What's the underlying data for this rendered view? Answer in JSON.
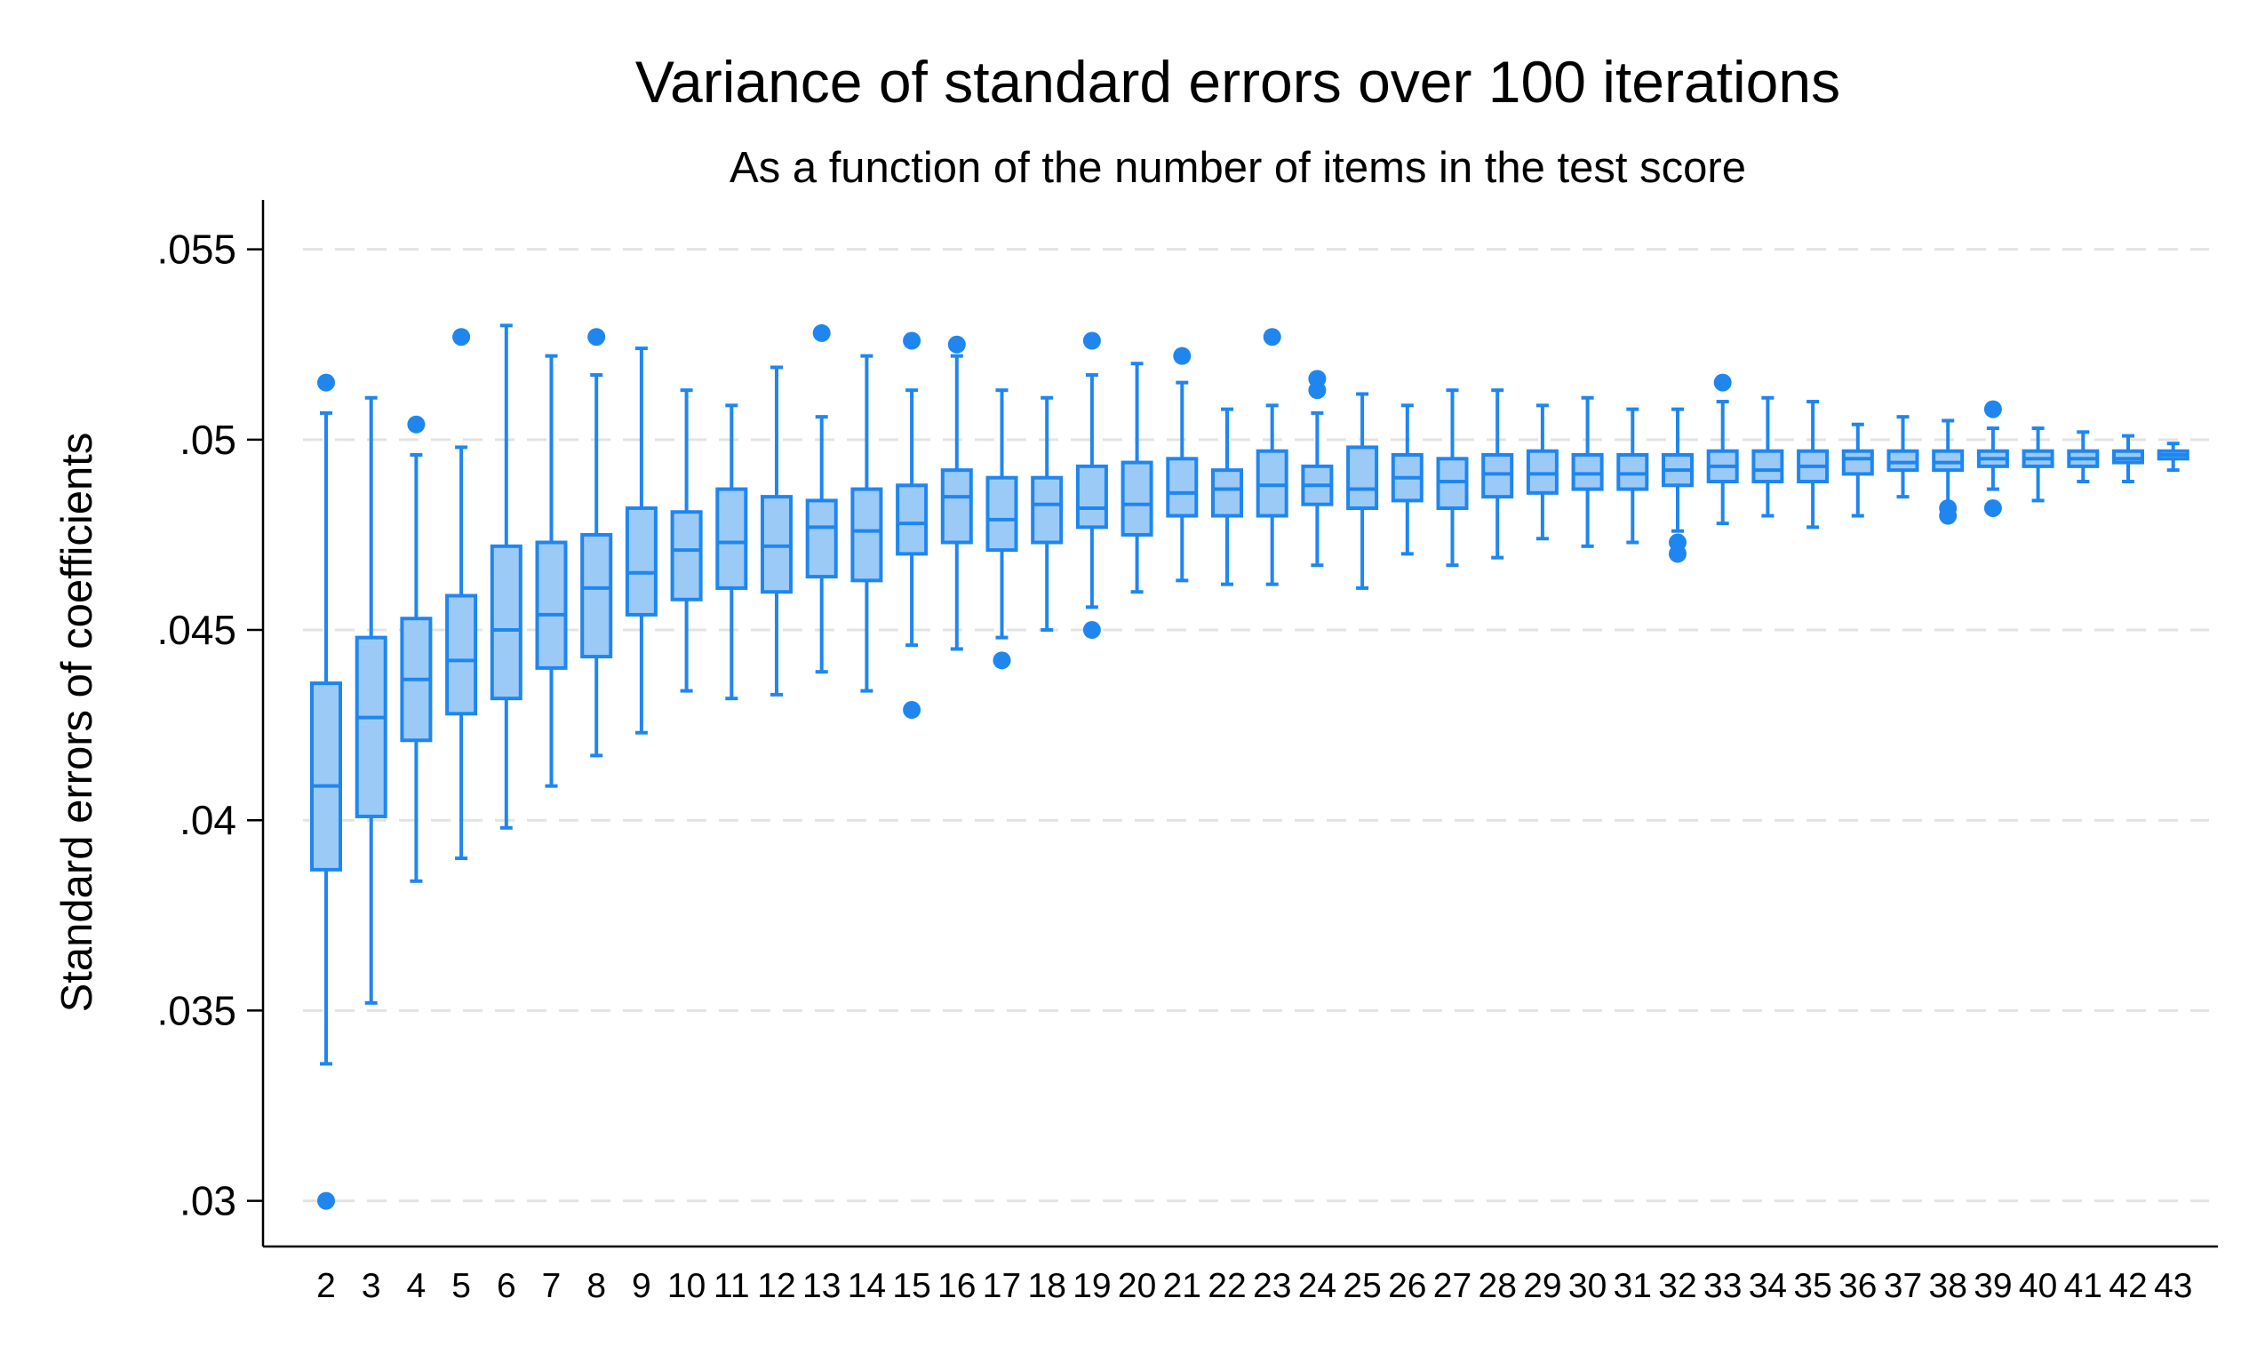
{
  "chart_data": {
    "type": "boxplot",
    "title": "Variance of standard errors over 100 iterations",
    "subtitle": "As a function of the number of items in the test score",
    "ylabel": "Standard errors of coefficients",
    "xlabel": "",
    "ylim": [
      0.0288,
      0.0563
    ],
    "y_ticks": [
      0.03,
      0.035,
      0.04,
      0.045,
      0.05,
      0.055
    ],
    "y_tick_labels": [
      ".03",
      ".035",
      ".04",
      ".045",
      ".05",
      ".055"
    ],
    "grid": true,
    "colors": {
      "box_fill": "#9ccaf7",
      "box_stroke": "#1f86f0",
      "outlier": "#1f86f0",
      "grid": "#e3e3e3"
    },
    "categories": [
      "2",
      "3",
      "4",
      "5",
      "6",
      "7",
      "8",
      "9",
      "10",
      "11",
      "12",
      "13",
      "14",
      "15",
      "16",
      "17",
      "18",
      "19",
      "20",
      "21",
      "22",
      "23",
      "24",
      "25",
      "26",
      "27",
      "28",
      "29",
      "30",
      "31",
      "32",
      "33",
      "34",
      "35",
      "36",
      "37",
      "38",
      "39",
      "40",
      "41",
      "42",
      "43"
    ],
    "boxes": [
      {
        "x": "2",
        "q1": 0.0387,
        "median": 0.0409,
        "q3": 0.0436,
        "lower": 0.0336,
        "upper": 0.0507,
        "outliers": [
          0.0515,
          0.03
        ]
      },
      {
        "x": "3",
        "q1": 0.0401,
        "median": 0.0427,
        "q3": 0.0448,
        "lower": 0.0352,
        "upper": 0.0511,
        "outliers": []
      },
      {
        "x": "4",
        "q1": 0.0421,
        "median": 0.0437,
        "q3": 0.0453,
        "lower": 0.0384,
        "upper": 0.0496,
        "outliers": [
          0.0504
        ]
      },
      {
        "x": "5",
        "q1": 0.0428,
        "median": 0.0442,
        "q3": 0.0459,
        "lower": 0.039,
        "upper": 0.0498,
        "outliers": [
          0.0527
        ]
      },
      {
        "x": "6",
        "q1": 0.0432,
        "median": 0.045,
        "q3": 0.0472,
        "lower": 0.0398,
        "upper": 0.053,
        "outliers": []
      },
      {
        "x": "7",
        "q1": 0.044,
        "median": 0.0454,
        "q3": 0.0473,
        "lower": 0.0409,
        "upper": 0.0522,
        "outliers": []
      },
      {
        "x": "8",
        "q1": 0.0443,
        "median": 0.0461,
        "q3": 0.0475,
        "lower": 0.0417,
        "upper": 0.0517,
        "outliers": [
          0.0527
        ]
      },
      {
        "x": "9",
        "q1": 0.0454,
        "median": 0.0465,
        "q3": 0.0482,
        "lower": 0.0423,
        "upper": 0.0524,
        "outliers": []
      },
      {
        "x": "10",
        "q1": 0.0458,
        "median": 0.0471,
        "q3": 0.0481,
        "lower": 0.0434,
        "upper": 0.0513,
        "outliers": []
      },
      {
        "x": "11",
        "q1": 0.0461,
        "median": 0.0473,
        "q3": 0.0487,
        "lower": 0.0432,
        "upper": 0.0509,
        "outliers": []
      },
      {
        "x": "12",
        "q1": 0.046,
        "median": 0.0472,
        "q3": 0.0485,
        "lower": 0.0433,
        "upper": 0.0519,
        "outliers": []
      },
      {
        "x": "13",
        "q1": 0.0464,
        "median": 0.0477,
        "q3": 0.0484,
        "lower": 0.0439,
        "upper": 0.0506,
        "outliers": [
          0.0528
        ]
      },
      {
        "x": "14",
        "q1": 0.0463,
        "median": 0.0476,
        "q3": 0.0487,
        "lower": 0.0434,
        "upper": 0.0522,
        "outliers": []
      },
      {
        "x": "15",
        "q1": 0.047,
        "median": 0.0478,
        "q3": 0.0488,
        "lower": 0.0446,
        "upper": 0.0513,
        "outliers": [
          0.0526,
          0.0429
        ]
      },
      {
        "x": "16",
        "q1": 0.0473,
        "median": 0.0485,
        "q3": 0.0492,
        "lower": 0.0445,
        "upper": 0.0522,
        "outliers": [
          0.0525
        ]
      },
      {
        "x": "17",
        "q1": 0.0471,
        "median": 0.0479,
        "q3": 0.049,
        "lower": 0.0448,
        "upper": 0.0513,
        "outliers": [
          0.0442
        ]
      },
      {
        "x": "18",
        "q1": 0.0473,
        "median": 0.0483,
        "q3": 0.049,
        "lower": 0.045,
        "upper": 0.0511,
        "outliers": []
      },
      {
        "x": "19",
        "q1": 0.0477,
        "median": 0.0482,
        "q3": 0.0493,
        "lower": 0.0456,
        "upper": 0.0517,
        "outliers": [
          0.0526,
          0.045
        ]
      },
      {
        "x": "20",
        "q1": 0.0475,
        "median": 0.0483,
        "q3": 0.0494,
        "lower": 0.046,
        "upper": 0.052,
        "outliers": []
      },
      {
        "x": "21",
        "q1": 0.048,
        "median": 0.0486,
        "q3": 0.0495,
        "lower": 0.0463,
        "upper": 0.0515,
        "outliers": [
          0.0522
        ]
      },
      {
        "x": "22",
        "q1": 0.048,
        "median": 0.0487,
        "q3": 0.0492,
        "lower": 0.0462,
        "upper": 0.0508,
        "outliers": []
      },
      {
        "x": "23",
        "q1": 0.048,
        "median": 0.0488,
        "q3": 0.0497,
        "lower": 0.0462,
        "upper": 0.0509,
        "outliers": [
          0.0527
        ]
      },
      {
        "x": "24",
        "q1": 0.0483,
        "median": 0.0488,
        "q3": 0.0493,
        "lower": 0.0467,
        "upper": 0.0507,
        "outliers": [
          0.0516,
          0.0513
        ]
      },
      {
        "x": "25",
        "q1": 0.0482,
        "median": 0.0487,
        "q3": 0.0498,
        "lower": 0.0461,
        "upper": 0.0512,
        "outliers": []
      },
      {
        "x": "26",
        "q1": 0.0484,
        "median": 0.049,
        "q3": 0.0496,
        "lower": 0.047,
        "upper": 0.0509,
        "outliers": []
      },
      {
        "x": "27",
        "q1": 0.0482,
        "median": 0.0489,
        "q3": 0.0495,
        "lower": 0.0467,
        "upper": 0.0513,
        "outliers": []
      },
      {
        "x": "28",
        "q1": 0.0485,
        "median": 0.0491,
        "q3": 0.0496,
        "lower": 0.0469,
        "upper": 0.0513,
        "outliers": []
      },
      {
        "x": "29",
        "q1": 0.0486,
        "median": 0.0491,
        "q3": 0.0497,
        "lower": 0.0474,
        "upper": 0.0509,
        "outliers": []
      },
      {
        "x": "30",
        "q1": 0.0487,
        "median": 0.0491,
        "q3": 0.0496,
        "lower": 0.0472,
        "upper": 0.0511,
        "outliers": []
      },
      {
        "x": "31",
        "q1": 0.0487,
        "median": 0.0491,
        "q3": 0.0496,
        "lower": 0.0473,
        "upper": 0.0508,
        "outliers": []
      },
      {
        "x": "32",
        "q1": 0.0488,
        "median": 0.0492,
        "q3": 0.0496,
        "lower": 0.0476,
        "upper": 0.0508,
        "outliers": [
          0.0473,
          0.047
        ]
      },
      {
        "x": "33",
        "q1": 0.0489,
        "median": 0.0493,
        "q3": 0.0497,
        "lower": 0.0478,
        "upper": 0.051,
        "outliers": [
          0.0515
        ]
      },
      {
        "x": "34",
        "q1": 0.0489,
        "median": 0.0492,
        "q3": 0.0497,
        "lower": 0.048,
        "upper": 0.0511,
        "outliers": []
      },
      {
        "x": "35",
        "q1": 0.0489,
        "median": 0.0493,
        "q3": 0.0497,
        "lower": 0.0477,
        "upper": 0.051,
        "outliers": []
      },
      {
        "x": "36",
        "q1": 0.0491,
        "median": 0.0495,
        "q3": 0.0497,
        "lower": 0.048,
        "upper": 0.0504,
        "outliers": []
      },
      {
        "x": "37",
        "q1": 0.0492,
        "median": 0.0494,
        "q3": 0.0497,
        "lower": 0.0485,
        "upper": 0.0506,
        "outliers": []
      },
      {
        "x": "38",
        "q1": 0.0492,
        "median": 0.0494,
        "q3": 0.0497,
        "lower": 0.0483,
        "upper": 0.0505,
        "outliers": [
          0.0482,
          0.048
        ]
      },
      {
        "x": "39",
        "q1": 0.0493,
        "median": 0.0495,
        "q3": 0.0497,
        "lower": 0.0487,
        "upper": 0.0503,
        "outliers": [
          0.0508,
          0.0482
        ]
      },
      {
        "x": "40",
        "q1": 0.0493,
        "median": 0.0495,
        "q3": 0.0497,
        "lower": 0.0484,
        "upper": 0.0503,
        "outliers": []
      },
      {
        "x": "41",
        "q1": 0.0493,
        "median": 0.0495,
        "q3": 0.0497,
        "lower": 0.0489,
        "upper": 0.0502,
        "outliers": []
      },
      {
        "x": "42",
        "q1": 0.0494,
        "median": 0.0495,
        "q3": 0.0497,
        "lower": 0.0489,
        "upper": 0.0501,
        "outliers": []
      },
      {
        "x": "43",
        "q1": 0.0495,
        "median": 0.0496,
        "q3": 0.0497,
        "lower": 0.0492,
        "upper": 0.0499,
        "outliers": []
      }
    ]
  }
}
